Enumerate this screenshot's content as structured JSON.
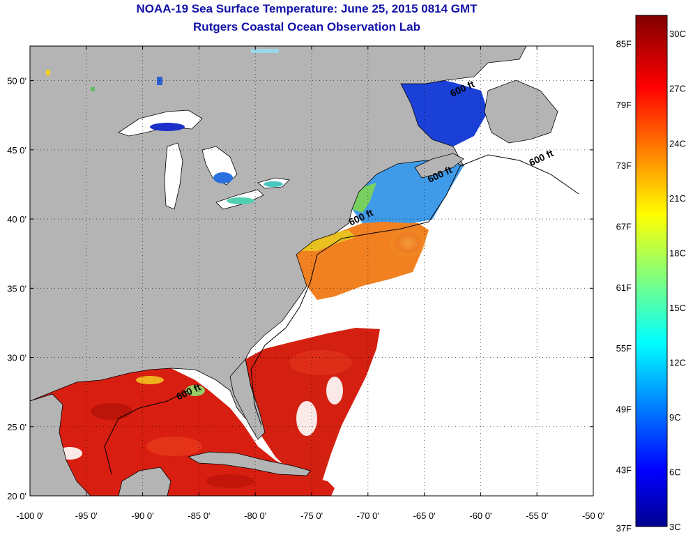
{
  "title": {
    "line1": "NOAA-19 Sea Surface Temperature:  June 25, 2015 0814 GMT",
    "line2": "Rutgers Coastal Ocean Observation Lab"
  },
  "map": {
    "lon_range": [
      -100,
      -50
    ],
    "lat_range": [
      20,
      52.5
    ],
    "lon_ticks": [
      -100,
      -95,
      -90,
      -85,
      -80,
      -75,
      -70,
      -65,
      -60,
      -55,
      -50
    ],
    "lon_labels": [
      "-100 0'",
      "-95 0'",
      "-90 0'",
      "-85 0'",
      "-80 0'",
      "-75 0'",
      "-70 0'",
      "-65 0'",
      "-60 0'",
      "-55 0'",
      "-50 0'"
    ],
    "lat_ticks": [
      20,
      25,
      30,
      35,
      40,
      45,
      50
    ],
    "lat_labels": [
      "20 0'",
      "25 0'",
      "30 0'",
      "35 0'",
      "40 0'",
      "45 0'",
      "50 0'"
    ],
    "grid": "dotted",
    "land_color": "#b4b4b4",
    "no_data_color": "#ffffff",
    "contour_label": "600 ft",
    "contour_labels": [
      {
        "text": "600 ft",
        "lon": -61.5,
        "lat": 49.2
      },
      {
        "text": "600 ft",
        "lon": -54.5,
        "lat": 44.2
      },
      {
        "text": "600 ft",
        "lon": -63.5,
        "lat": 43.0
      },
      {
        "text": "600 ft",
        "lon": -70.5,
        "lat": 39.9
      },
      {
        "text": "600 ft",
        "lon": -85.8,
        "lat": 27.3
      }
    ]
  },
  "colorbar": {
    "min_c": 3,
    "max_c": 31,
    "celsius_labels": [
      "3C",
      "6C",
      "9C",
      "12C",
      "15C",
      "18C",
      "21C",
      "24C",
      "27C",
      "30C"
    ],
    "celsius_values": [
      3,
      6,
      9,
      12,
      15,
      18,
      21,
      24,
      27,
      30
    ],
    "fahrenheit_labels": [
      "37F",
      "43F",
      "49F",
      "55F",
      "61F",
      "67F",
      "73F",
      "79F",
      "85F"
    ],
    "fahrenheit_values": [
      37,
      43,
      49,
      55,
      61,
      67,
      73,
      79,
      85
    ],
    "colormap": "jet",
    "stops": [
      "#00008f",
      "#0000ff",
      "#00ffff",
      "#ffff00",
      "#ff0000",
      "#800000"
    ]
  }
}
